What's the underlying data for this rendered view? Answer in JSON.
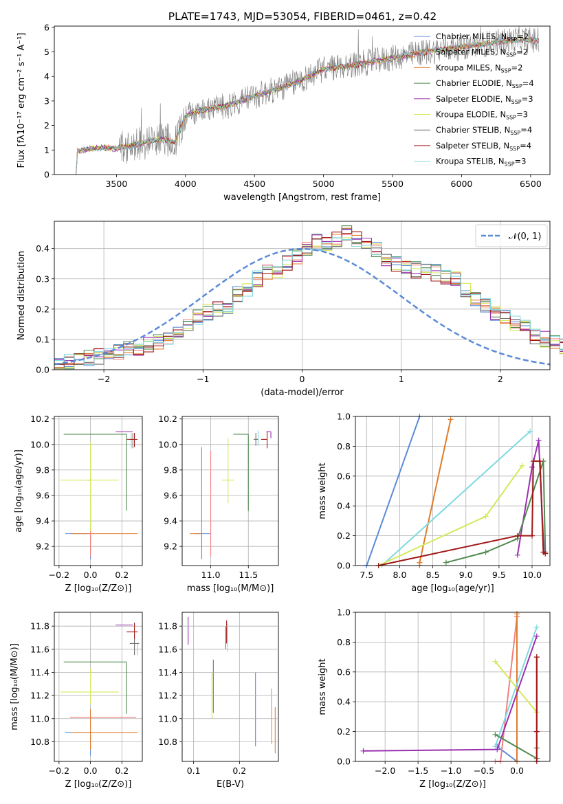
{
  "title": "PLATE=1743, MJD=53054, FIBERID=0461, z=0.42",
  "colors": {
    "chabrier_miles": "#5b8bd6",
    "salpeter_miles": "#f08080",
    "kroupa_miles": "#e07b2a",
    "chabrier_elodie": "#4f8a4f",
    "salpeter_elodie": "#9a2fb0",
    "kroupa_elodie": "#d4e85a",
    "chabrier_stelib": "#707070",
    "salpeter_stelib": "#a01818",
    "kroupa_stelib": "#7fd8e0",
    "gauss": "#5b8bd6",
    "grid": "#b0b0b0"
  },
  "legend_spectrum": [
    {
      "label": "Chabrier MILES, N",
      "sub": "SSP",
      "suffix": "=2",
      "color": "#5b8bd6"
    },
    {
      "label": "Salpeter MILES, N",
      "sub": "SSP",
      "suffix": "=2",
      "color": "#f08080"
    },
    {
      "label": "Kroupa MILES, N",
      "sub": "SSP",
      "suffix": "=2",
      "color": "#e07b2a"
    },
    {
      "label": "Chabrier ELODIE, N",
      "sub": "SSP",
      "suffix": "=4",
      "color": "#4f8a4f"
    },
    {
      "label": "Salpeter ELODIE, N",
      "sub": "SSP",
      "suffix": "=3",
      "color": "#9a2fb0"
    },
    {
      "label": "Kroupa ELODIE, N",
      "sub": "SSP",
      "suffix": "=3",
      "color": "#d4e85a"
    },
    {
      "label": "Chabrier STELIB, N",
      "sub": "SSP",
      "suffix": "=4",
      "color": "#707070"
    },
    {
      "label": "Salpeter STELIB, N",
      "sub": "SSP",
      "suffix": "=4",
      "color": "#a01818"
    },
    {
      "label": "Kroupa STELIB, N",
      "sub": "SSP",
      "suffix": "=3",
      "color": "#7fd8e0"
    }
  ],
  "legend_hist": {
    "label": "𝒩(0, 1)"
  },
  "chart_data": [
    {
      "id": "spectrum",
      "type": "line",
      "xlabel": "wavelength [Angstrom, rest frame]",
      "ylabel": "Flux [fλ10⁻¹⁷ erg cm⁻² s⁻¹ A⁻¹]",
      "xlim": [
        3050,
        6640
      ],
      "ylim": [
        0,
        6.05
      ],
      "xticks": [
        3500,
        4000,
        4500,
        5000,
        5500,
        6000,
        6500
      ],
      "yticks": [
        0,
        1,
        2,
        3,
        4,
        5,
        6
      ],
      "continuum": [
        [
          3210,
          0.0
        ],
        [
          3215,
          0.95
        ],
        [
          3300,
          1.05
        ],
        [
          3400,
          1.1
        ],
        [
          3500,
          1.05
        ],
        [
          3550,
          1.1
        ],
        [
          3700,
          1.3
        ],
        [
          3850,
          1.45
        ],
        [
          3920,
          1.3
        ],
        [
          3960,
          1.8
        ],
        [
          4000,
          2.4
        ],
        [
          4100,
          2.6
        ],
        [
          4300,
          2.8
        ],
        [
          4500,
          3.2
        ],
        [
          4700,
          3.55
        ],
        [
          4860,
          3.9
        ],
        [
          5000,
          4.3
        ],
        [
          5200,
          4.45
        ],
        [
          5400,
          4.65
        ],
        [
          5600,
          4.85
        ],
        [
          5800,
          5.05
        ],
        [
          6000,
          5.2
        ],
        [
          6200,
          5.35
        ],
        [
          6400,
          5.5
        ],
        [
          6560,
          5.45
        ]
      ]
    },
    {
      "id": "residual_hist",
      "type": "step",
      "xlabel": "(data-model)/error",
      "ylabel": "Normed distribution",
      "xlim": [
        -2.5,
        2.5
      ],
      "ylim": [
        0,
        0.49
      ],
      "xticks": [
        -2,
        -1,
        0,
        1,
        2
      ],
      "yticks": [
        0.0,
        0.1,
        0.2,
        0.3,
        0.4
      ],
      "bin_edges_start": -2.5,
      "bin_width": 0.1,
      "mean_hist": [
        0.015,
        0.025,
        0.035,
        0.04,
        0.045,
        0.05,
        0.06,
        0.07,
        0.075,
        0.08,
        0.09,
        0.1,
        0.13,
        0.15,
        0.17,
        0.19,
        0.2,
        0.21,
        0.25,
        0.27,
        0.3,
        0.32,
        0.33,
        0.35,
        0.37,
        0.4,
        0.42,
        0.42,
        0.43,
        0.45,
        0.43,
        0.41,
        0.4,
        0.37,
        0.35,
        0.34,
        0.33,
        0.33,
        0.32,
        0.31,
        0.3,
        0.26,
        0.23,
        0.21,
        0.19,
        0.17,
        0.15,
        0.14,
        0.11,
        0.1,
        0.09,
        0.08,
        0.07,
        0.06,
        0.055,
        0.05,
        0.045,
        0.04,
        0.035,
        0.03
      ],
      "gaussian": {
        "mean": 0,
        "sigma": 1
      }
    },
    {
      "id": "age_vs_Z",
      "type": "errorbar",
      "xlabel": "Z [log₁₀(Z/Z⊙)]",
      "ylabel": "age  [log₁₀(age/yr)]",
      "xlim": [
        -0.23,
        0.33
      ],
      "ylim": [
        9.05,
        10.22
      ],
      "xticks": [
        -0.2,
        0.0,
        0.2
      ],
      "yticks": [
        9.2,
        9.4,
        9.6,
        9.8,
        10.0,
        10.2
      ],
      "points": [
        {
          "s": "chabrier_miles",
          "x": 0.0,
          "y": 9.3,
          "xerr": [
            0.16,
            0.0
          ],
          "yerr": [
            0.2,
            0.0
          ]
        },
        {
          "s": "kroupa_miles",
          "x": 0.0,
          "y": 9.3,
          "xerr": [
            0.12,
            0.3
          ],
          "yerr": [
            0.15,
            0.23
          ]
        },
        {
          "s": "salpeter_miles",
          "x": 0.0,
          "y": 9.72,
          "xerr": [
            0.02,
            0.0
          ],
          "yerr": [
            0.6,
            0.3
          ]
        },
        {
          "s": "kroupa_elodie",
          "x": 0.0,
          "y": 9.72,
          "xerr": [
            0.19,
            0.18
          ],
          "yerr": [
            0.4,
            0.3
          ]
        },
        {
          "s": "chabrier_elodie",
          "x": 0.23,
          "y": 10.08,
          "xerr": [
            0.4,
            0.0
          ],
          "yerr": [
            0.6,
            0.0
          ]
        },
        {
          "s": "salpeter_elodie",
          "x": 0.27,
          "y": 10.1,
          "xerr": [
            0.11,
            0.0
          ],
          "yerr": [
            0.0,
            0.0
          ]
        },
        {
          "s": "kroupa_stelib",
          "x": 0.26,
          "y": 10.04,
          "xerr": [
            0.0,
            0.0
          ],
          "yerr": [
            0.07,
            0.05
          ]
        },
        {
          "s": "chabrier_stelib",
          "x": 0.27,
          "y": 10.04,
          "xerr": [
            0.02,
            0.0
          ],
          "yerr": [
            0.07,
            0.05
          ]
        },
        {
          "s": "salpeter_stelib",
          "x": 0.28,
          "y": 10.04,
          "xerr": [
            0.05,
            0.02
          ],
          "yerr": [
            0.06,
            0.05
          ]
        }
      ]
    },
    {
      "id": "age_vs_mass",
      "type": "errorbar",
      "xlabel": "mass [log₁₀(M/M⊙)]",
      "ylabel": "",
      "xlim": [
        10.62,
        11.9
      ],
      "ylim": [
        9.05,
        10.22
      ],
      "xticks": [
        11.0,
        11.5
      ],
      "yticks": [
        9.2,
        9.4,
        9.6,
        9.8,
        10.0,
        10.2
      ],
      "points": [
        {
          "s": "chabrier_miles",
          "x": 10.88,
          "y": 9.3,
          "xerr": [
            0.1,
            0.12
          ],
          "yerr": [
            0.2,
            0.0
          ]
        },
        {
          "s": "kroupa_miles",
          "x": 10.88,
          "y": 9.3,
          "xerr": [
            0.16,
            0.0
          ],
          "yerr": [
            0.0,
            0.68
          ]
        },
        {
          "s": "salpeter_miles",
          "x": 11.0,
          "y": 9.72,
          "xerr": [
            0.0,
            0.0
          ],
          "yerr": [
            0.6,
            0.23
          ]
        },
        {
          "s": "kroupa_elodie",
          "x": 11.23,
          "y": 9.72,
          "xerr": [
            0.08,
            0.08
          ],
          "yerr": [
            0.18,
            0.33
          ]
        },
        {
          "s": "chabrier_elodie",
          "x": 11.5,
          "y": 10.08,
          "xerr": [
            0.2,
            0.0
          ],
          "yerr": [
            0.6,
            0.0
          ]
        },
        {
          "s": "kroupa_stelib",
          "x": 11.63,
          "y": 10.04,
          "xerr": [
            0.03,
            0.0
          ],
          "yerr": [
            0.05,
            0.07
          ]
        },
        {
          "s": "chabrier_stelib",
          "x": 11.6,
          "y": 10.04,
          "xerr": [
            0.03,
            0.03
          ],
          "yerr": [
            0.05,
            0.05
          ]
        },
        {
          "s": "salpeter_elodie",
          "x": 11.8,
          "y": 10.1,
          "xerr": [
            0.06,
            0.0
          ],
          "yerr": [
            0.05,
            0.0
          ]
        },
        {
          "s": "salpeter_stelib",
          "x": 11.75,
          "y": 10.04,
          "xerr": [
            0.08,
            0.0
          ],
          "yerr": [
            0.07,
            0.06
          ]
        }
      ]
    },
    {
      "id": "massweight_vs_age",
      "type": "line",
      "xlabel": "age  [log₁₀(age/yr)]",
      "ylabel": "mass weight",
      "xlim": [
        7.33,
        10.27
      ],
      "ylim": [
        0,
        1
      ],
      "xticks": [
        7.5,
        8.0,
        8.5,
        9.0,
        9.5,
        10.0
      ],
      "yticks": [
        0.0,
        0.2,
        0.4,
        0.6,
        0.8,
        1.0
      ],
      "series": [
        {
          "s": "chabrier_miles",
          "x": [
            7.5,
            8.3
          ],
          "y": [
            0.0,
            1.0
          ]
        },
        {
          "s": "kroupa_miles",
          "x": [
            8.3,
            8.3,
            8.77
          ],
          "y": [
            0.0,
            0.02,
            0.98
          ]
        },
        {
          "s": "kroupa_stelib",
          "x": [
            7.73,
            9.97
          ],
          "y": [
            0.0,
            0.9
          ]
        },
        {
          "s": "kroupa_elodie",
          "x": [
            7.68,
            9.3,
            9.85
          ],
          "y": [
            0.0,
            0.33,
            0.67
          ]
        },
        {
          "s": "salpeter_elodie",
          "x": [
            9.78,
            10.0,
            10.1,
            10.18
          ],
          "y": [
            0.07,
            0.66,
            0.84,
            0.09
          ]
        },
        {
          "s": "chabrier_elodie",
          "x": [
            8.7,
            9.3,
            9.78,
            10.17,
            10.2
          ],
          "y": [
            0.02,
            0.09,
            0.18,
            0.7,
            0.09
          ]
        },
        {
          "s": "salpeter_stelib",
          "x": [
            7.68,
            9.78,
            10.0,
            10.02,
            10.12,
            10.17,
            10.2
          ],
          "y": [
            0.0,
            0.2,
            0.2,
            0.7,
            0.7,
            0.09,
            0.08
          ]
        }
      ]
    },
    {
      "id": "mass_vs_Z",
      "type": "errorbar",
      "xlabel": "Z [log₁₀(Z/Z⊙)]",
      "ylabel": "mass [log₁₀(M/M⊙)]",
      "xlim": [
        -0.23,
        0.33
      ],
      "ylim": [
        10.63,
        11.92
      ],
      "xticks": [
        -0.2,
        0.0,
        0.2
      ],
      "yticks": [
        10.8,
        11.0,
        11.2,
        11.4,
        11.6,
        11.8
      ],
      "points": [
        {
          "s": "chabrier_miles",
          "x": 0.0,
          "y": 10.88,
          "xerr": [
            0.16,
            0.0
          ],
          "yerr": [
            0.2,
            0.0
          ]
        },
        {
          "s": "kroupa_miles",
          "x": 0.0,
          "y": 10.88,
          "xerr": [
            0.12,
            0.3
          ],
          "yerr": [
            0.15,
            0.2
          ]
        },
        {
          "s": "salpeter_miles",
          "x": 0.06,
          "y": 11.01,
          "xerr": [
            0.19,
            0.23
          ],
          "yerr": [
            0.0,
            0.0
          ]
        },
        {
          "s": "kroupa_elodie",
          "x": 0.0,
          "y": 11.23,
          "xerr": [
            0.19,
            0.18
          ],
          "yerr": [
            0.1,
            0.2
          ]
        },
        {
          "s": "chabrier_elodie",
          "x": 0.23,
          "y": 11.49,
          "xerr": [
            0.4,
            0.0
          ],
          "yerr": [
            0.45,
            0.0
          ]
        },
        {
          "s": "salpeter_elodie",
          "x": 0.27,
          "y": 11.81,
          "xerr": [
            0.11,
            0.0
          ],
          "yerr": [
            0.0,
            0.0
          ]
        },
        {
          "s": "kroupa_stelib",
          "x": 0.3,
          "y": 11.6,
          "xerr": [
            0.0,
            0.0
          ],
          "yerr": [
            0.05,
            0.05
          ]
        },
        {
          "s": "chabrier_stelib",
          "x": 0.28,
          "y": 11.65,
          "xerr": [
            0.03,
            0.03
          ],
          "yerr": [
            0.1,
            0.05
          ]
        },
        {
          "s": "salpeter_stelib",
          "x": 0.28,
          "y": 11.75,
          "xerr": [
            0.05,
            0.02
          ],
          "yerr": [
            0.06,
            0.08
          ]
        }
      ]
    },
    {
      "id": "mass_vs_EBV",
      "type": "errorbar",
      "xlabel": "E(B-V)",
      "ylabel": "",
      "xlim": [
        0.075,
        0.285
      ],
      "ylim": [
        10.63,
        11.92
      ],
      "xticks": [
        0.1,
        0.2
      ],
      "points": [
        {
          "s": "salpeter_elodie",
          "x": 0.088,
          "y": 11.76,
          "xerr": [
            0.0,
            0.0
          ],
          "yerr": [
            0.12,
            0.12
          ]
        },
        {
          "s": "kroupa_elodie",
          "x": 0.14,
          "y": 11.2,
          "xerr": [
            0.0,
            0.0
          ],
          "yerr": [
            0.2,
            0.2
          ]
        },
        {
          "s": "chabrier_elodie",
          "x": 0.143,
          "y": 11.28,
          "xerr": [
            0.0,
            0.0
          ],
          "yerr": [
            0.23,
            0.23
          ]
        },
        {
          "s": "chabrier_stelib",
          "x": 0.17,
          "y": 11.7,
          "xerr": [
            0.0,
            0.0
          ],
          "yerr": [
            0.1,
            0.1
          ]
        },
        {
          "s": "salpeter_stelib",
          "x": 0.172,
          "y": 11.75,
          "xerr": [
            0.0,
            0.0
          ],
          "yerr": [
            0.1,
            0.1
          ]
        },
        {
          "s": "kroupa_stelib",
          "x": 0.174,
          "y": 11.7,
          "xerr": [
            0.0,
            0.0
          ],
          "yerr": [
            0.12,
            0.12
          ]
        },
        {
          "s": "chabrier_miles",
          "x": 0.235,
          "y": 11.08,
          "xerr": [
            0.0,
            0.0
          ],
          "yerr": [
            0.32,
            0.32
          ]
        },
        {
          "s": "salpeter_miles",
          "x": 0.27,
          "y": 11.02,
          "xerr": [
            0.0,
            0.0
          ],
          "yerr": [
            0.24,
            0.24
          ]
        },
        {
          "s": "kroupa_miles",
          "x": 0.278,
          "y": 10.9,
          "xerr": [
            0.0,
            0.0
          ],
          "yerr": [
            0.2,
            0.2
          ]
        }
      ]
    },
    {
      "id": "massweight_vs_Z",
      "type": "line",
      "xlabel": "Z [log₁₀(Z/Z⊙)]",
      "ylabel": "mass weight",
      "xlim": [
        -2.45,
        0.5
      ],
      "ylim": [
        0,
        1
      ],
      "xticks": [
        -2.0,
        -1.5,
        -1.0,
        -0.5,
        0.0
      ],
      "yticks": [
        0.0,
        0.2,
        0.4,
        0.6,
        0.8,
        1.0
      ],
      "series": [
        {
          "s": "chabrier_miles",
          "x": [
            -0.3,
            0.0
          ],
          "y": [
            0.1,
            0.0
          ]
        },
        {
          "s": "salpeter_miles",
          "x": [
            -0.33,
            -0.25,
            0.0
          ],
          "y": [
            0.0,
            0.0,
            0.97
          ]
        },
        {
          "s": "kroupa_miles",
          "x": [
            0.0,
            0.0
          ],
          "y": [
            0.0,
            0.99
          ]
        },
        {
          "s": "kroupa_stelib",
          "x": [
            -0.33,
            0.3
          ],
          "y": [
            0.1,
            0.9
          ]
        },
        {
          "s": "kroupa_elodie",
          "x": [
            -0.33,
            0.3
          ],
          "y": [
            0.67,
            0.33
          ]
        },
        {
          "s": "salpeter_elodie",
          "x": [
            -2.33,
            -0.3,
            0.3
          ],
          "y": [
            0.07,
            0.08,
            0.84
          ]
        },
        {
          "s": "chabrier_elodie",
          "x": [
            -0.33,
            0.3,
            0.3,
            0.3
          ],
          "y": [
            0.18,
            0.02,
            0.09,
            0.7
          ]
        },
        {
          "s": "salpeter_stelib",
          "x": [
            0.3,
            0.3,
            0.3
          ],
          "y": [
            0.0,
            0.2,
            0.7
          ]
        }
      ]
    }
  ]
}
